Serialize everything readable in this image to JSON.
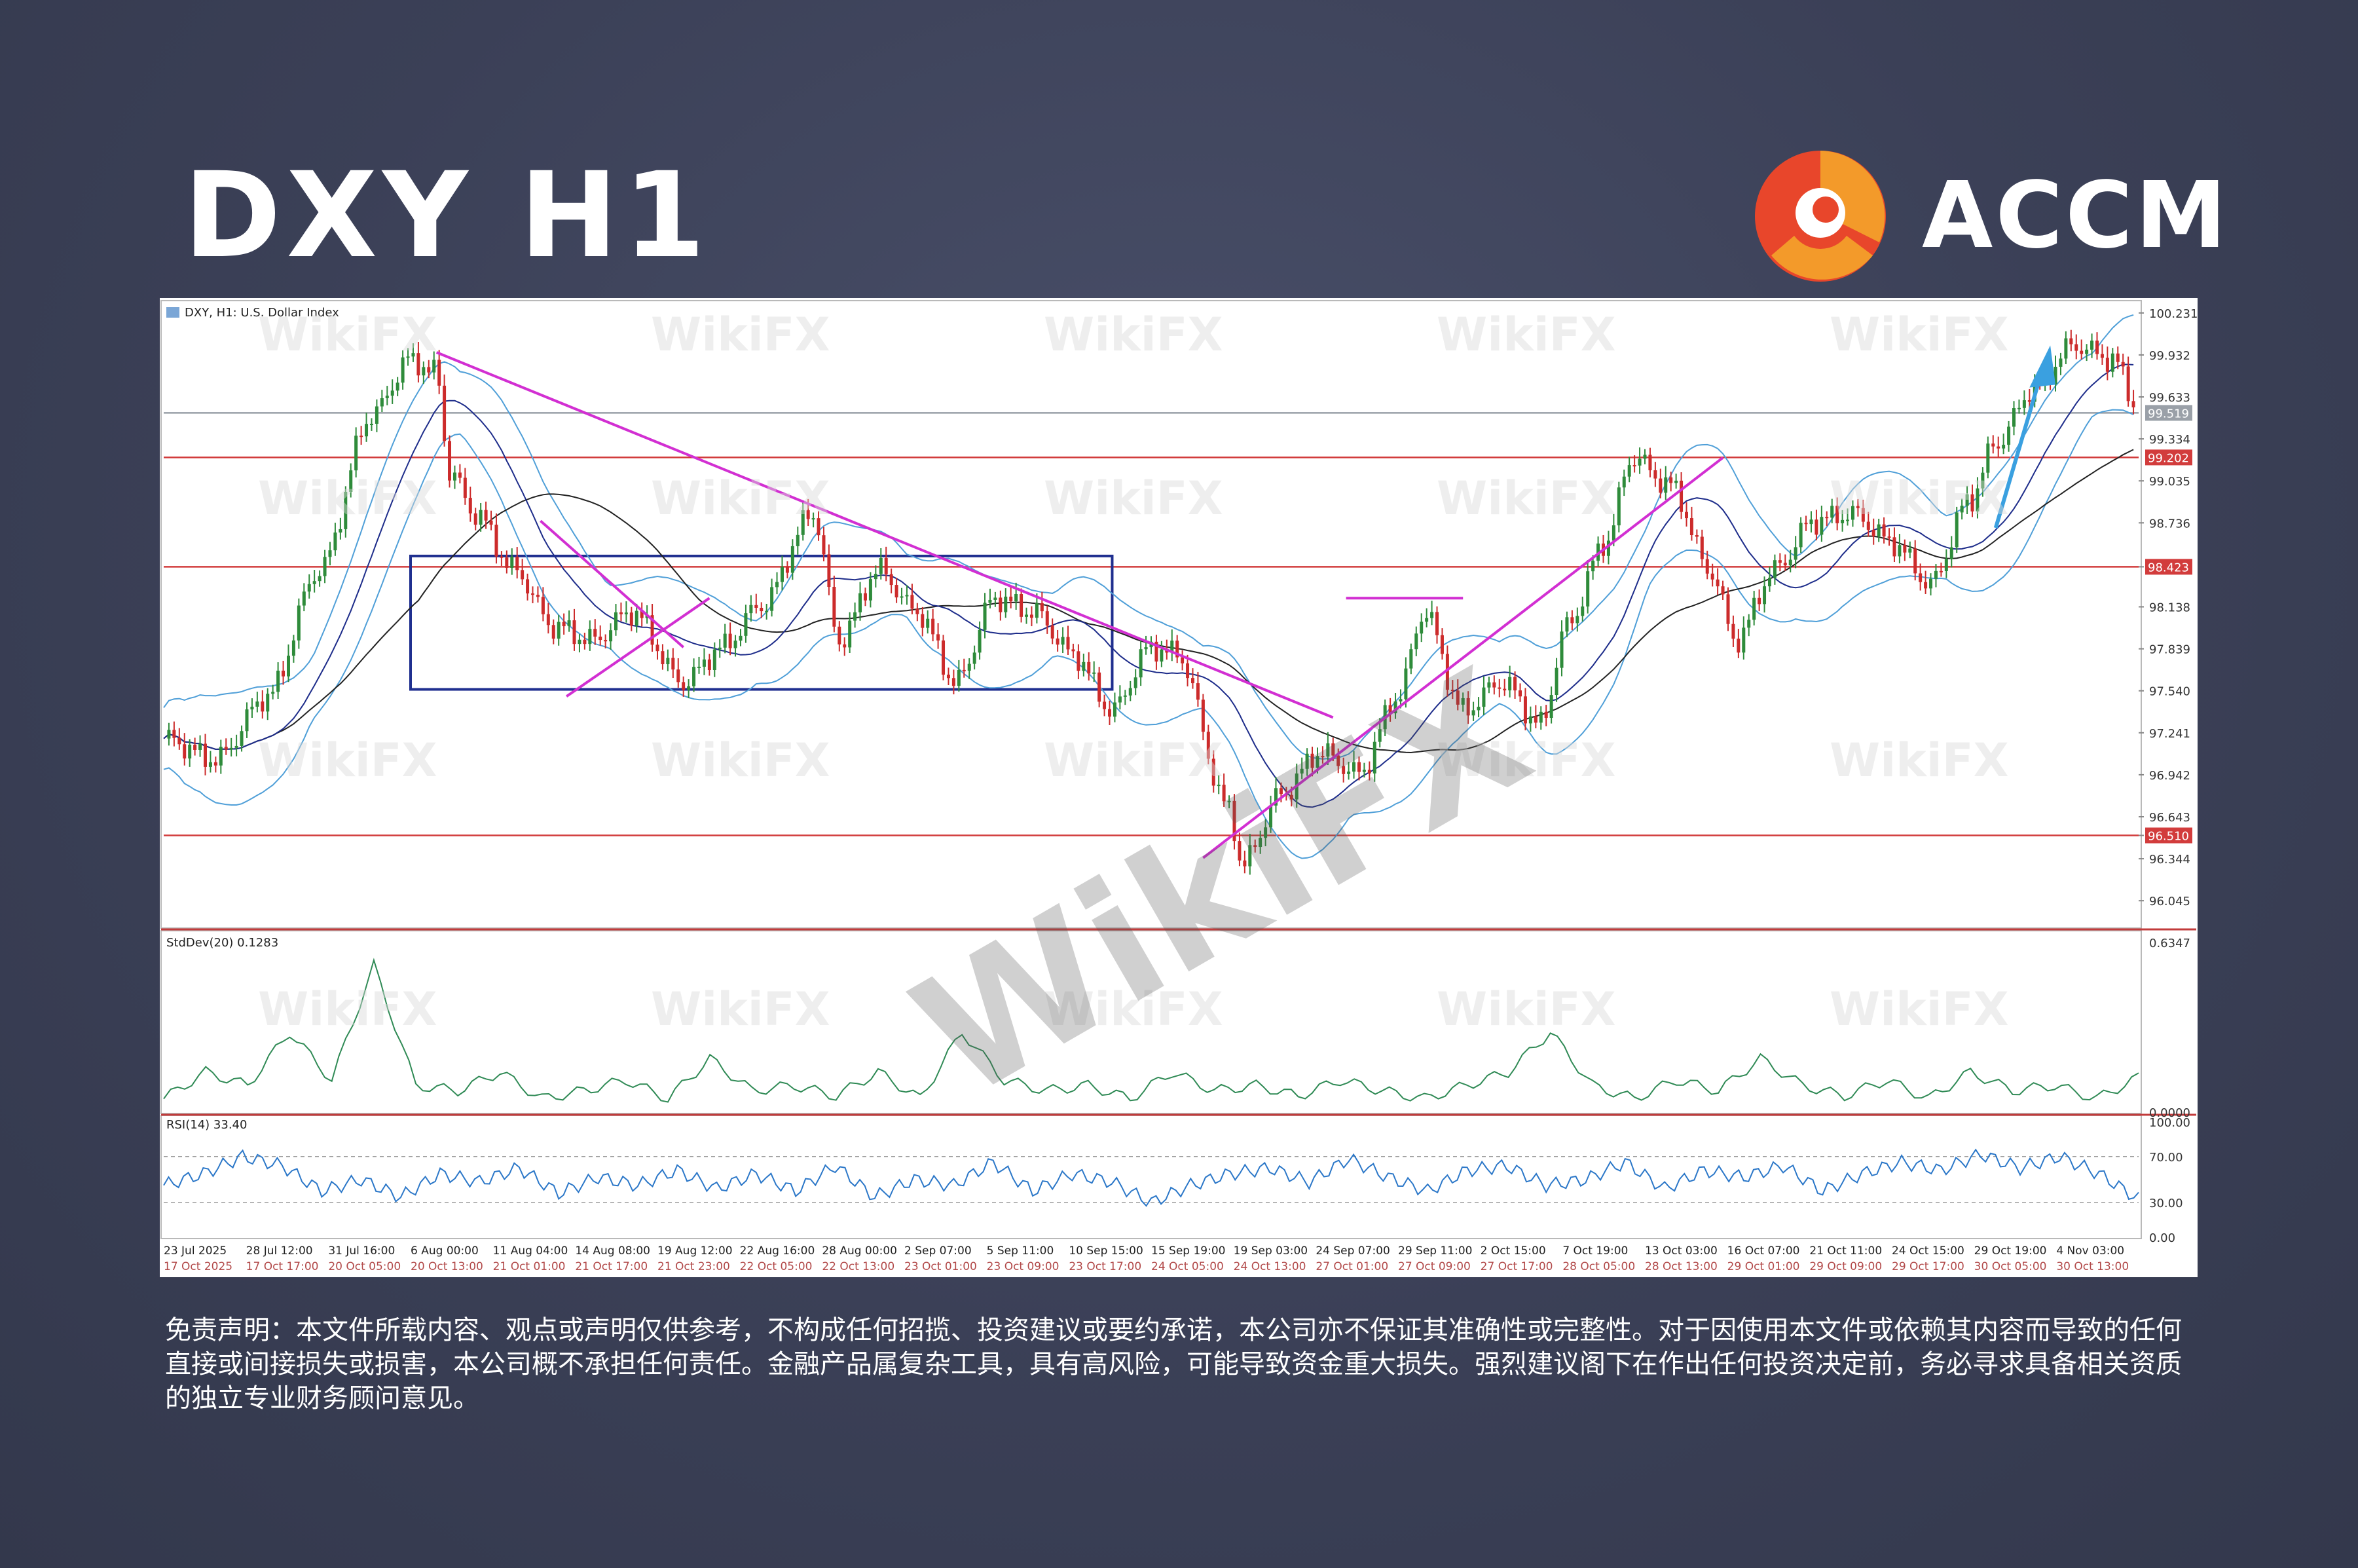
{
  "header": {
    "title": "DXY H1",
    "brand": "ACCM"
  },
  "watermark": {
    "text": "WikiFX"
  },
  "chart_data": [
    {
      "type": "line",
      "panel": "price",
      "window_label": "DXY, H1: U.S. Dollar Index",
      "ylim": [
        95.85,
        100.3
      ],
      "y_ticks": [
        "100.231",
        "99.932",
        "99.633",
        "99.334",
        "99.035",
        "98.736",
        "98.423",
        "98.138",
        "97.839",
        "97.540",
        "97.241",
        "96.942",
        "96.643",
        "96.510",
        "96.344",
        "96.045"
      ],
      "current_price_label": "99.519",
      "horizontal_levels": [
        {
          "value": 99.519,
          "label": "99.519",
          "color": "#9aa0a8"
        },
        {
          "value": 99.202,
          "label": "99.202",
          "color": "#d23c3c"
        },
        {
          "value": 98.423,
          "label": "98.423",
          "color": "#d23c3c"
        },
        {
          "value": 96.51,
          "label": "96.510",
          "color": "#d23c3c"
        }
      ],
      "x_labels_top": [
        "23 Jul 2025",
        "28 Jul 12:00",
        "31 Jul 16:00",
        "6 Aug 00:00",
        "11 Aug 04:00",
        "14 Aug 08:00",
        "19 Aug 12:00",
        "22 Aug 16:00",
        "28 Aug 00:00",
        "2 Sep 07:00",
        "5 Sep 11:00",
        "10 Sep 15:00",
        "15 Sep 19:00",
        "19 Sep 03:00",
        "24 Sep 07:00",
        "29 Sep 11:00",
        "2 Oct 15:00",
        "7 Oct 19:00",
        "13 Oct 03:00",
        "16 Oct 07:00",
        "21 Oct 11:00",
        "24 Oct 15:00",
        "29 Oct 19:00",
        "4 Nov 03:00"
      ],
      "x_labels_bottom": [
        "17 Oct 2025",
        "17 Oct 17:00",
        "20 Oct 05:00",
        "20 Oct 13:00",
        "21 Oct 01:00",
        "21 Oct 17:00",
        "21 Oct 23:00",
        "22 Oct 05:00",
        "22 Oct 13:00",
        "23 Oct 01:00",
        "23 Oct 09:00",
        "23 Oct 17:00",
        "24 Oct 05:00",
        "24 Oct 13:00",
        "27 Oct 01:00",
        "27 Oct 09:00",
        "27 Oct 17:00",
        "28 Oct 05:00",
        "28 Oct 13:00",
        "29 Oct 01:00",
        "29 Oct 09:00",
        "29 Oct 17:00",
        "30 Oct 05:00",
        "30 Oct 13:00"
      ],
      "price_path": [
        [
          0,
          97.2
        ],
        [
          4,
          97.05
        ],
        [
          8,
          97.5
        ],
        [
          12,
          98.4
        ],
        [
          16,
          99.5
        ],
        [
          19,
          99.9
        ],
        [
          21,
          99.8
        ],
        [
          22,
          99.1
        ],
        [
          24,
          98.8
        ],
        [
          27,
          98.4
        ],
        [
          30,
          98.0
        ],
        [
          33,
          97.9
        ],
        [
          36,
          98.1
        ],
        [
          40,
          97.6
        ],
        [
          43,
          97.85
        ],
        [
          46,
          98.15
        ],
        [
          50,
          98.8
        ],
        [
          52,
          97.9
        ],
        [
          55,
          98.4
        ],
        [
          58,
          98.1
        ],
        [
          61,
          97.6
        ],
        [
          64,
          98.2
        ],
        [
          67,
          98.1
        ],
        [
          70,
          97.8
        ],
        [
          73,
          97.4
        ],
        [
          76,
          97.85
        ],
        [
          78,
          97.8
        ],
        [
          82,
          96.7
        ],
        [
          83,
          96.3
        ],
        [
          86,
          96.8
        ],
        [
          89,
          97.1
        ],
        [
          92,
          96.95
        ],
        [
          95,
          97.5
        ],
        [
          97,
          98.1
        ],
        [
          100,
          97.4
        ],
        [
          103,
          97.6
        ],
        [
          106,
          97.3
        ],
        [
          108,
          98.0
        ],
        [
          111,
          98.6
        ],
        [
          113,
          99.2
        ],
        [
          116,
          99.0
        ],
        [
          119,
          98.4
        ],
        [
          121,
          97.9
        ],
        [
          124,
          98.4
        ],
        [
          127,
          98.75
        ],
        [
          130,
          98.8
        ],
        [
          133,
          98.6
        ],
        [
          136,
          98.3
        ],
        [
          139,
          98.9
        ],
        [
          141,
          99.3
        ],
        [
          144,
          99.7
        ],
        [
          147,
          100.0
        ],
        [
          150,
          99.9
        ],
        [
          152,
          99.55
        ]
      ],
      "trendlines": [
        {
          "from": [
            21,
            99.95
          ],
          "to": [
            90,
            97.35
          ],
          "color": "#d22fd2"
        },
        {
          "from": [
            29,
            98.75
          ],
          "to": [
            40,
            97.85
          ],
          "color": "#d22fd2"
        },
        {
          "from": [
            31,
            97.5
          ],
          "to": [
            42,
            98.2
          ],
          "color": "#d22fd2"
        },
        {
          "from": [
            80,
            96.35
          ],
          "to": [
            120,
            99.2
          ],
          "color": "#d22fd2"
        },
        {
          "from": [
            91,
            98.2
          ],
          "to": [
            100,
            98.2
          ],
          "color": "#d22fd2"
        }
      ],
      "rectangles": [
        {
          "x": [
            19,
            73
          ],
          "y": [
            97.55,
            98.5
          ],
          "color": "#1f2f8f"
        }
      ]
    },
    {
      "type": "line",
      "panel": "indicator",
      "label": "StdDev(20) 0.1283",
      "y_ticks": [
        "0.6347",
        "0.0000"
      ],
      "ylim": [
        0,
        0.65
      ],
      "values": [
        0.05,
        0.15,
        0.1,
        0.3,
        0.12,
        0.55,
        0.1,
        0.08,
        0.15,
        0.05,
        0.08,
        0.12,
        0.05,
        0.2,
        0.08,
        0.1,
        0.06,
        0.15,
        0.05,
        0.3,
        0.12,
        0.08,
        0.1,
        0.05,
        0.15,
        0.08,
        0.1,
        0.06,
        0.12,
        0.08,
        0.05,
        0.1,
        0.15,
        0.3,
        0.1,
        0.05,
        0.12,
        0.08,
        0.2,
        0.1,
        0.06,
        0.12,
        0.05,
        0.15,
        0.08,
        0.1,
        0.05,
        0.13
      ]
    },
    {
      "type": "line",
      "panel": "indicator",
      "label": "RSI(14) 33.40",
      "y_ticks": [
        "100.00",
        "70.00",
        "30.00",
        "0.00"
      ],
      "ylim": [
        0,
        100
      ],
      "values": [
        45,
        55,
        70,
        62,
        40,
        50,
        35,
        55,
        48,
        60,
        38,
        52,
        45,
        58,
        42,
        55,
        40,
        62,
        35,
        50,
        45,
        65,
        40,
        55,
        48,
        30,
        45,
        55,
        60,
        48,
        68,
        52,
        40,
        58,
        62,
        45,
        50,
        65,
        42,
        58,
        52,
        62,
        40,
        55,
        65,
        58,
        72,
        60,
        70,
        55,
        33
      ]
    }
  ],
  "disclaimer": {
    "text": "免责声明：本文件所载内容、观点或声明仅供参考，不构成任何招揽、投资建议或要约承诺，本公司亦不保证其准确性或完整性。对于因使用本文件或依赖其内容而导致的任何直接或间接损失或损害，本公司概不承担任何责任。金融产品属复杂工具，具有高风险，可能导致资金重大损失。强烈建议阁下在作出任何投资决定前，务必寻求具备相关资质的独立专业财务顾问意见。"
  }
}
